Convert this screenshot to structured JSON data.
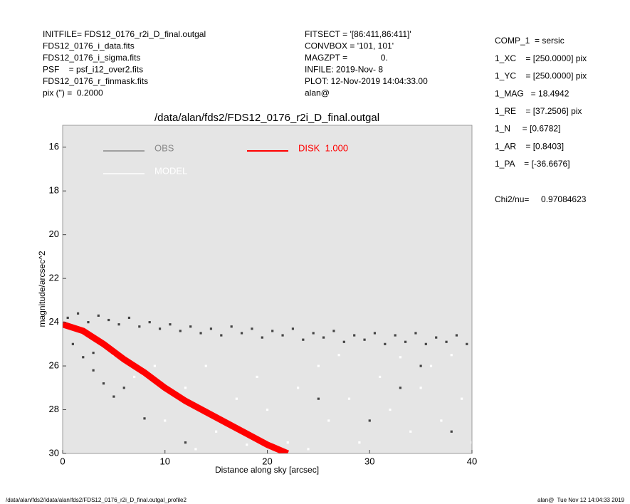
{
  "header_left": [
    "INITFILE= FDS12_0176_r2i_D_final.outgal",
    "FDS12_0176_i_data.fits",
    "FDS12_0176_i_sigma.fits",
    "PSF    = psf_i12_over2.fits",
    "FDS12_0176_r_finmask.fits",
    "pix (\") =  0.2000"
  ],
  "header_middle": [
    "FITSECT = '[86:411,86:411]'",
    "CONVBOX = '101, 101'",
    "MAGZPT =              0.",
    "INFILE: 2019-Nov- 8",
    "PLOT: 12-Nov-2019 14:04:33.00",
    "alan@"
  ],
  "header_right": [
    "COMP_1  = sersic",
    "1_XC    = [250.0000] pix",
    "1_YC    = [250.0000] pix",
    "1_MAG   = 18.4942",
    "1_RE    = [37.2506] pix",
    "1_N     = [0.6782]",
    "1_AR    = [0.8403]",
    "1_PA    = [-36.6676]"
  ],
  "chi2": "Chi2/nu=     0.97084623",
  "footer_left": "/data/alan/fds2//data/alan/fds2/FDS12_0176_r2i_D_final.outgal_profile2",
  "footer_right": "alan@  Tue Nov 12 14:04:33 2019",
  "chart_data": {
    "type": "scatter",
    "title": "/data/alan/fds2/FDS12_0176_r2i_D_final.outgal",
    "xlabel": "Distance along sky [arcsec]",
    "ylabel": "magnitude/arcsec^2",
    "xlim": [
      0,
      40
    ],
    "ylim": [
      30,
      15
    ],
    "xticks": [
      0,
      10,
      20,
      30,
      40
    ],
    "yticks": [
      16,
      18,
      20,
      22,
      24,
      26,
      28,
      30
    ],
    "background": "#e5e5e5",
    "legend": "upper-left",
    "series": [
      {
        "name": "OBS",
        "color": "#444444",
        "legend_color": "#888888",
        "kind": "points",
        "x": [
          0.5,
          1.5,
          2.5,
          3.5,
          4.5,
          5.5,
          6.5,
          7.5,
          8.5,
          9.5,
          10.5,
          11.5,
          12.5,
          13.5,
          14.5,
          15.5,
          16.5,
          17.5,
          18.5,
          19.5,
          20.5,
          21.5,
          22.5,
          23.5,
          24.5,
          25.5,
          26.5,
          27.5,
          28.5,
          29.5,
          30.5,
          31.5,
          32.5,
          33.5,
          34.5,
          35.5,
          36.5,
          37.5,
          38.5,
          39.5,
          1,
          2,
          3,
          4,
          5,
          6,
          3,
          8,
          12,
          25,
          30,
          35,
          38,
          33
        ],
        "values": [
          23.8,
          23.6,
          24.0,
          23.7,
          23.9,
          24.1,
          23.8,
          24.2,
          24.0,
          24.3,
          24.1,
          24.4,
          24.2,
          24.5,
          24.3,
          24.6,
          24.2,
          24.5,
          24.3,
          24.7,
          24.4,
          24.6,
          24.3,
          24.8,
          24.5,
          24.7,
          24.4,
          24.9,
          24.6,
          24.8,
          24.5,
          25.0,
          24.6,
          24.9,
          24.5,
          25.0,
          24.7,
          24.9,
          24.6,
          25.0,
          25.0,
          25.6,
          26.2,
          26.8,
          27.4,
          27.0,
          25.4,
          28.4,
          29.5,
          27.5,
          28.5,
          26.0,
          29.0,
          27.0
        ]
      },
      {
        "name": "MODEL",
        "color": "#ffffff",
        "legend_color": "#ffffff",
        "kind": "points",
        "x": [
          5,
          7,
          9,
          10,
          12,
          14,
          15,
          17,
          19,
          20,
          22,
          23,
          25,
          26,
          28,
          29,
          31,
          32,
          34,
          35,
          36,
          37,
          38,
          39,
          40,
          27,
          33,
          24,
          18,
          13
        ],
        "values": [
          25.5,
          26.5,
          26.0,
          28.5,
          27.0,
          26.0,
          29.0,
          27.5,
          26.5,
          28.0,
          29.5,
          27.0,
          26.0,
          28.5,
          27.5,
          29.5,
          26.5,
          28.0,
          29.0,
          27.0,
          26.0,
          28.5,
          25.5,
          27.5,
          29.5,
          25.5,
          25.6,
          29.8,
          29.6,
          29.8
        ]
      },
      {
        "name": "DISK  1.000",
        "color": "#ff0000",
        "legend_color": "#ff0000",
        "kind": "line",
        "x": [
          0,
          2,
          4,
          6,
          8,
          10,
          12,
          14,
          16,
          18,
          20,
          22
        ],
        "values": [
          24.1,
          24.4,
          25.0,
          25.7,
          26.3,
          27.0,
          27.6,
          28.1,
          28.6,
          29.1,
          29.6,
          30.0
        ]
      }
    ]
  }
}
